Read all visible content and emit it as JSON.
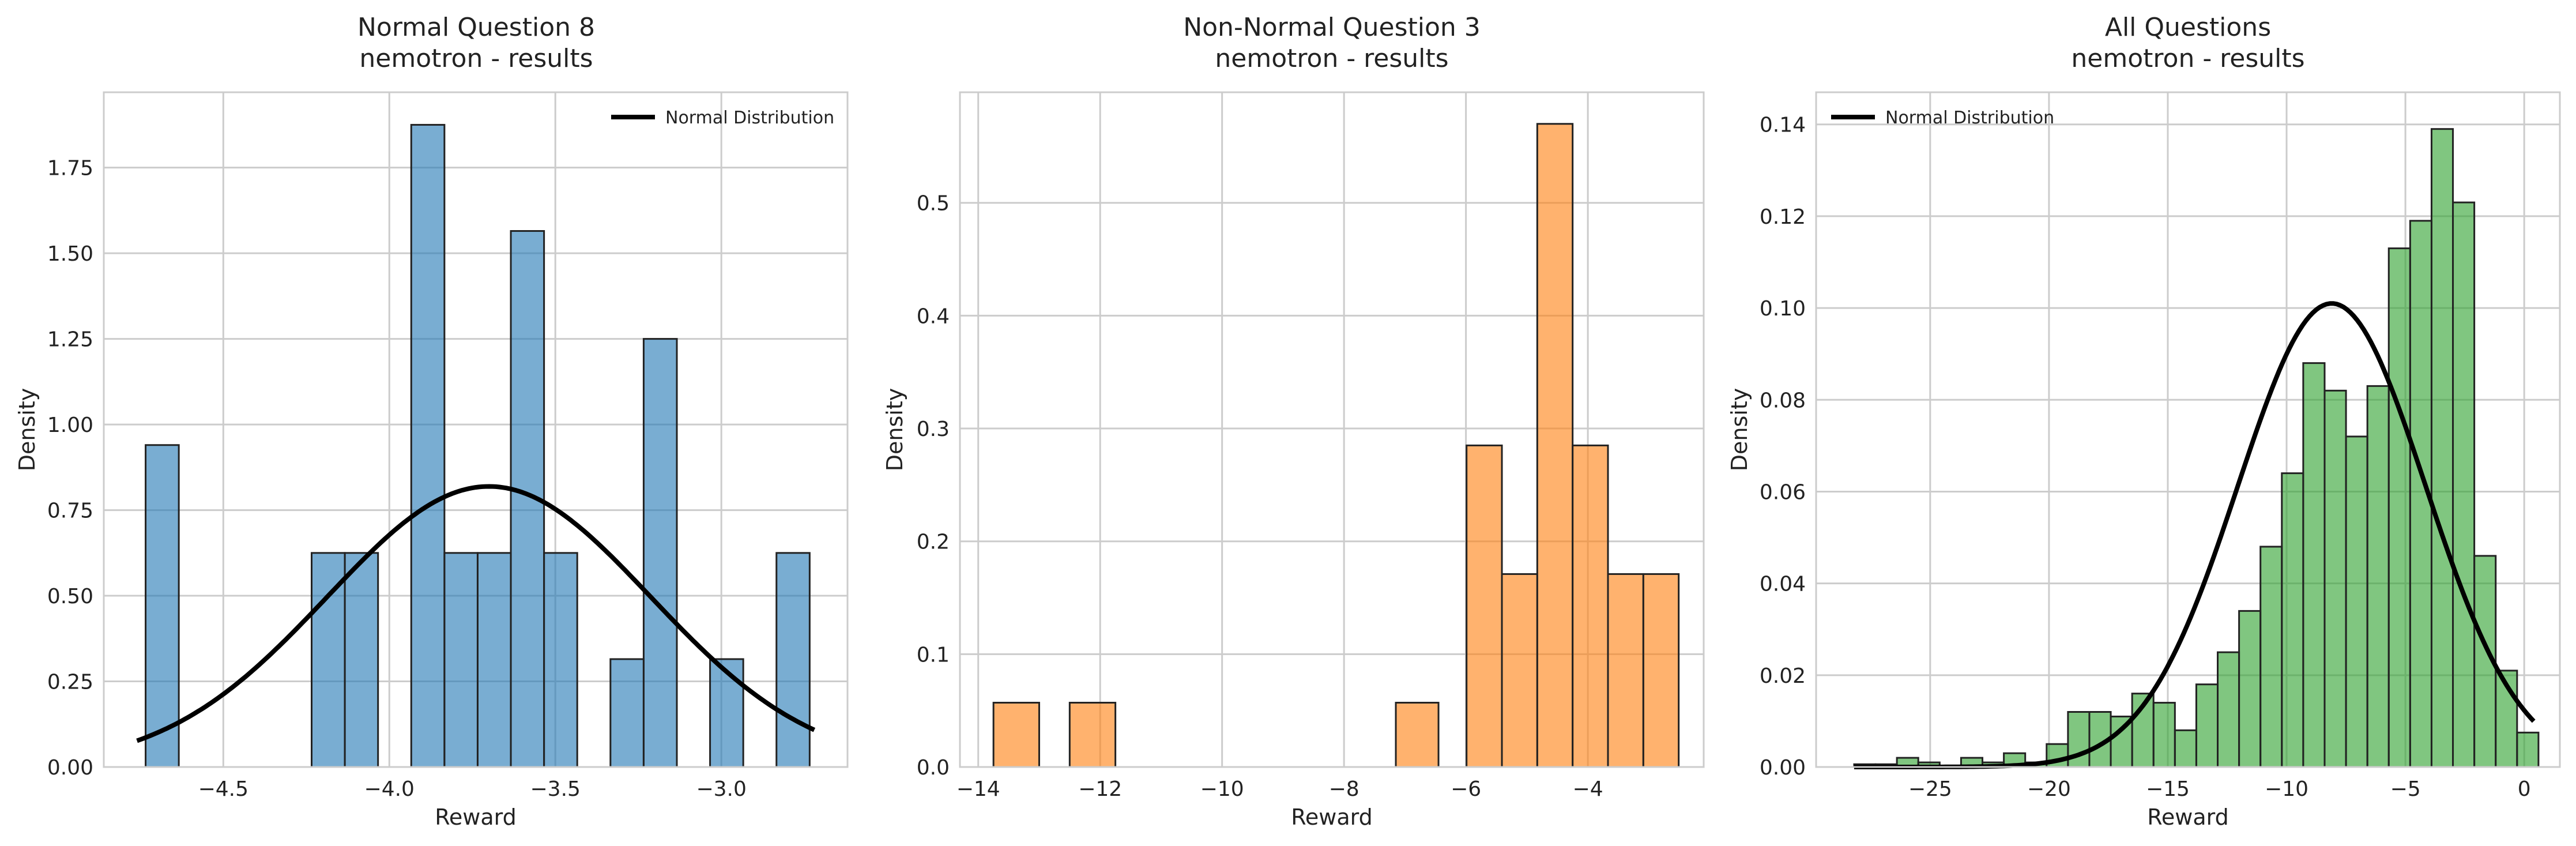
{
  "chart_data": [
    {
      "type": "histogram",
      "title": "Normal Question 8",
      "subtitle": "nemotron - results",
      "xlabel": "Reward",
      "ylabel": "Density",
      "xlim": [
        -4.86,
        -2.62
      ],
      "ylim": [
        0,
        1.97
      ],
      "xticks": [
        -4.5,
        -4.0,
        -3.5,
        -3.0
      ],
      "xtick_labels": [
        "−4.5",
        "−4.0",
        "−3.5",
        "−3.0"
      ],
      "yticks": [
        0,
        0.25,
        0.5,
        0.75,
        1.0,
        1.25,
        1.5,
        1.75
      ],
      "ytick_labels": [
        "0.00",
        "0.25",
        "0.50",
        "0.75",
        "1.00",
        "1.25",
        "1.50",
        "1.75"
      ],
      "grid": true,
      "legend": {
        "position": "top-right",
        "entries": [
          "Normal Distribution"
        ]
      },
      "colors": {
        "bar": "#1f77b4",
        "edge": "#222222",
        "curve": "#000000"
      },
      "bar_alpha": 0.6,
      "bins": [
        {
          "start": -4.734,
          "end": -4.634,
          "density": 0.94
        },
        {
          "start": -4.234,
          "end": -4.134,
          "density": 0.625
        },
        {
          "start": -4.134,
          "end": -4.034,
          "density": 0.625
        },
        {
          "start": -3.934,
          "end": -3.834,
          "density": 1.875
        },
        {
          "start": -3.834,
          "end": -3.734,
          "density": 0.625
        },
        {
          "start": -3.734,
          "end": -3.634,
          "density": 0.625
        },
        {
          "start": -3.634,
          "end": -3.534,
          "density": 1.565
        },
        {
          "start": -3.534,
          "end": -3.434,
          "density": 0.625
        },
        {
          "start": -3.334,
          "end": -3.234,
          "density": 0.315
        },
        {
          "start": -3.234,
          "end": -3.134,
          "density": 1.25
        },
        {
          "start": -3.034,
          "end": -2.934,
          "density": 0.315
        },
        {
          "start": -2.834,
          "end": -2.734,
          "density": 0.625
        }
      ],
      "normal_curve": {
        "mean": -3.7,
        "std": 0.487,
        "x_range": [
          -4.76,
          -2.72
        ]
      }
    },
    {
      "type": "histogram",
      "title": "Non-Normal Question 3",
      "subtitle": "nemotron - results",
      "xlabel": "Reward",
      "ylabel": "Density",
      "xlim": [
        -14.3,
        -2.1
      ],
      "ylim": [
        0,
        0.598
      ],
      "xticks": [
        -14,
        -12,
        -10,
        -8,
        -6,
        -4
      ],
      "xtick_labels": [
        "−14",
        "−12",
        "−10",
        "−8",
        "−6",
        "−4"
      ],
      "yticks": [
        0,
        0.1,
        0.2,
        0.3,
        0.4,
        0.5
      ],
      "ytick_labels": [
        "0.0",
        "0.1",
        "0.2",
        "0.3",
        "0.4",
        "0.5"
      ],
      "grid": true,
      "colors": {
        "bar": "#ff7f0e",
        "edge": "#222222"
      },
      "bar_alpha": 0.6,
      "bins": [
        {
          "start": -13.75,
          "end": -13.0,
          "density": 0.057
        },
        {
          "start": -12.5,
          "end": -11.75,
          "density": 0.057
        },
        {
          "start": -7.15,
          "end": -6.45,
          "density": 0.057
        },
        {
          "start": -5.99,
          "end": -5.41,
          "density": 0.285
        },
        {
          "start": -5.41,
          "end": -4.83,
          "density": 0.171
        },
        {
          "start": -4.83,
          "end": -4.25,
          "density": 0.57
        },
        {
          "start": -4.25,
          "end": -3.67,
          "density": 0.285
        },
        {
          "start": -3.67,
          "end": -3.09,
          "density": 0.171
        },
        {
          "start": -3.09,
          "end": -2.51,
          "density": 0.171
        }
      ]
    },
    {
      "type": "histogram",
      "title": "All Questions",
      "subtitle": "nemotron - results",
      "xlabel": "Reward",
      "ylabel": "Density",
      "xlim": [
        -29.8,
        1.5
      ],
      "ylim": [
        0,
        0.147
      ],
      "xticks": [
        -25,
        -20,
        -15,
        -10,
        -5,
        0
      ],
      "xtick_labels": [
        "−25",
        "−20",
        "−15",
        "−10",
        "−5",
        "0"
      ],
      "yticks": [
        0,
        0.02,
        0.04,
        0.06,
        0.08,
        0.1,
        0.12,
        0.14
      ],
      "ytick_labels": [
        "0.00",
        "0.02",
        "0.04",
        "0.06",
        "0.08",
        "0.10",
        "0.12",
        "0.14"
      ],
      "grid": true,
      "legend": {
        "position": "top-left",
        "entries": [
          "Normal Distribution"
        ]
      },
      "colors": {
        "bar": "#2ca02c",
        "edge": "#222222",
        "curve": "#000000"
      },
      "bar_alpha": 0.6,
      "bin_start": -28.2,
      "bin_width": 0.9,
      "densities": [
        0.0006,
        0.0006,
        0.002,
        0.001,
        0.0,
        0.002,
        0.001,
        0.003,
        0.001,
        0.005,
        0.012,
        0.012,
        0.011,
        0.016,
        0.014,
        0.008,
        0.018,
        0.025,
        0.034,
        0.048,
        0.064,
        0.088,
        0.082,
        0.072,
        0.083,
        0.113,
        0.119,
        0.139,
        0.123,
        0.046,
        0.021,
        0.0075
      ],
      "normal_curve": {
        "mean": -8.1,
        "std": 3.95,
        "x_range": [
          -28.2,
          0.4
        ]
      }
    }
  ]
}
